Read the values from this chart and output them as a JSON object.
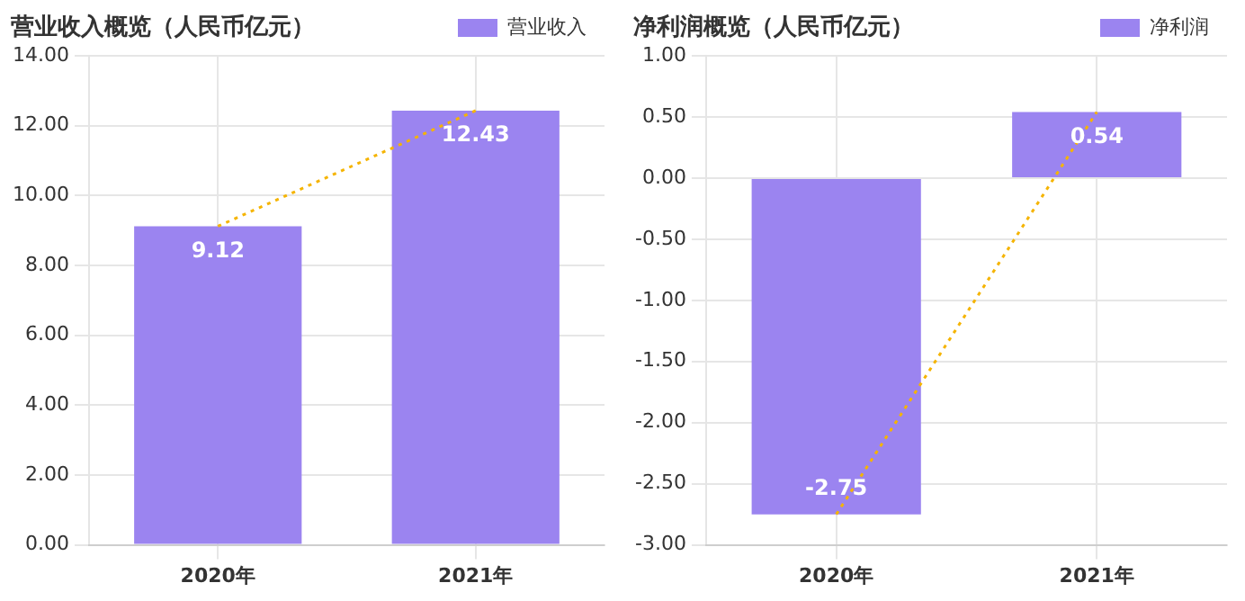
{
  "chart_data": [
    {
      "type": "bar",
      "title": "营业收入概览（人民币亿元）",
      "categories": [
        "2020年",
        "2021年"
      ],
      "legend": "top right",
      "grid": true,
      "ylim": [
        0,
        14
      ],
      "yticks": [
        {
          "value": 0,
          "label": "0.00"
        },
        {
          "value": 2,
          "label": "2.00"
        },
        {
          "value": 4,
          "label": "4.00"
        },
        {
          "value": 6,
          "label": "6.00"
        },
        {
          "value": 8,
          "label": "8.00"
        },
        {
          "value": 10,
          "label": "10.00"
        },
        {
          "value": 12,
          "label": "12.00"
        },
        {
          "value": 14,
          "label": "14.00"
        }
      ],
      "series": [
        {
          "name": "营业收入",
          "color": "#9b84f0",
          "values": [
            9.12,
            12.43
          ],
          "value_labels": [
            "9.12",
            "12.43"
          ]
        },
        {
          "type": "line",
          "color": "#f5b400",
          "line_style": "dotted",
          "marker": "none",
          "values": [
            9.12,
            12.43
          ]
        }
      ]
    },
    {
      "type": "bar",
      "title": "净利润概览（人民币亿元）",
      "categories": [
        "2020年",
        "2021年"
      ],
      "legend": "top right",
      "grid": true,
      "ylim": [
        -3,
        1
      ],
      "yticks": [
        {
          "value": -3,
          "label": "-3.00"
        },
        {
          "value": -2.5,
          "label": "-2.50"
        },
        {
          "value": -2,
          "label": "-2.00"
        },
        {
          "value": -1.5,
          "label": "-1.50"
        },
        {
          "value": -1,
          "label": "-1.00"
        },
        {
          "value": -0.5,
          "label": "-0.50"
        },
        {
          "value": 0,
          "label": "0.00"
        },
        {
          "value": 0.5,
          "label": "0.50"
        },
        {
          "value": 1,
          "label": "1.00"
        }
      ],
      "series": [
        {
          "name": "净利润",
          "color": "#9b84f0",
          "values": [
            -2.75,
            0.54
          ],
          "value_labels": [
            "-2.75",
            "0.54"
          ]
        },
        {
          "type": "line",
          "color": "#f5b400",
          "line_style": "dotted",
          "marker": "none",
          "values": [
            -2.75,
            0.54
          ]
        }
      ]
    }
  ]
}
